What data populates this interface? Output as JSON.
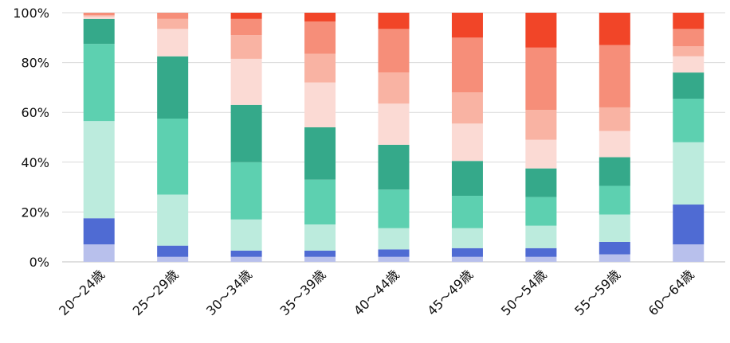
{
  "chart_data": {
    "type": "bar",
    "stacked": true,
    "normalized": true,
    "title": "",
    "xlabel": "",
    "ylabel": "",
    "ylim": [
      0,
      100
    ],
    "yticks": [
      "0%",
      "20%",
      "40%",
      "60%",
      "80%",
      "100%"
    ],
    "grid": true,
    "legend": "none",
    "categories": [
      "20～24歳",
      "25～29歳",
      "30～34歳",
      "35～39歳",
      "40～44歳",
      "45～49歳",
      "50～54歳",
      "55～59歳",
      "60～64歳"
    ],
    "series": [
      {
        "color": "#b8c0ec",
        "values": [
          7,
          2,
          2,
          2,
          2,
          2,
          2,
          3,
          7
        ]
      },
      {
        "color": "#4f6bd3",
        "values": [
          10.5,
          4.5,
          2.5,
          2.5,
          3,
          3.5,
          3.5,
          5,
          16
        ]
      },
      {
        "color": "#bcebdd",
        "values": [
          39,
          20.5,
          12.5,
          10.5,
          8.5,
          8,
          9,
          11,
          25
        ]
      },
      {
        "color": "#5dd0b0",
        "values": [
          31,
          30.5,
          23,
          18,
          15.5,
          13,
          11.5,
          11.5,
          17.5
        ]
      },
      {
        "color": "#35a98a",
        "values": [
          10,
          25,
          23,
          21,
          18,
          14,
          11.5,
          11.5,
          10.5
        ]
      },
      {
        "color": "#fbdad4",
        "values": [
          1,
          11,
          18.5,
          18,
          16.5,
          15,
          11.5,
          10.5,
          6.5
        ]
      },
      {
        "color": "#f9b3a3",
        "values": [
          0.5,
          4,
          9.5,
          11.5,
          12.5,
          12.5,
          12,
          9.5,
          4
        ]
      },
      {
        "color": "#f68e79",
        "values": [
          1,
          2.5,
          6.5,
          13,
          17.5,
          22,
          25,
          25,
          7
        ]
      },
      {
        "color": "#f14528",
        "values": [
          0,
          0,
          2.5,
          3.5,
          6.5,
          10,
          14,
          13,
          6.5
        ]
      }
    ]
  }
}
